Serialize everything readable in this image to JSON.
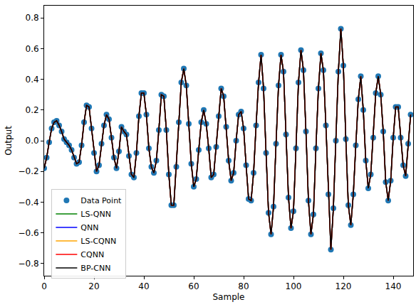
{
  "chart_data": {
    "type": "line",
    "x_label": "Sample",
    "y_label": "Output",
    "x": [
      0,
      1,
      2,
      3,
      4,
      5,
      6,
      7,
      8,
      9,
      10,
      11,
      12,
      13,
      14,
      15,
      16,
      17,
      18,
      19,
      20,
      21,
      22,
      23,
      24,
      25,
      26,
      27,
      28,
      29,
      30,
      31,
      32,
      33,
      34,
      35,
      36,
      37,
      38,
      39,
      40,
      41,
      42,
      43,
      44,
      45,
      46,
      47,
      48,
      49,
      50,
      51,
      52,
      53,
      54,
      55,
      56,
      57,
      58,
      59,
      60,
      61,
      62,
      63,
      64,
      65,
      66,
      67,
      68,
      69,
      70,
      71,
      72,
      73,
      74,
      75,
      76,
      77,
      78,
      79,
      80,
      81,
      82,
      83,
      84,
      85,
      86,
      87,
      88,
      89,
      90,
      91,
      92,
      93,
      94,
      95,
      96,
      97,
      98,
      99,
      100,
      101,
      102,
      103,
      104,
      105,
      106,
      107,
      108,
      109,
      110,
      111,
      112,
      113,
      114,
      115,
      116,
      117,
      118,
      119,
      120,
      121,
      122,
      123,
      124,
      125,
      126,
      127,
      128,
      129,
      130,
      131,
      132,
      133,
      134,
      135,
      136,
      137,
      138,
      139,
      140,
      141,
      142,
      143,
      144,
      145,
      146,
      147
    ],
    "xlim": [
      0,
      148
    ],
    "xticks": [
      0,
      20,
      40,
      60,
      80,
      100,
      120,
      140
    ],
    "ylim": [
      -0.88,
      0.88
    ],
    "yticks": [
      {
        "value": -0.8,
        "label": "−0.8"
      },
      {
        "value": -0.6,
        "label": "−0.6"
      },
      {
        "value": -0.4,
        "label": "−0.4"
      },
      {
        "value": -0.2,
        "label": "−0.2"
      },
      {
        "value": 0,
        "label": "0.0"
      },
      {
        "value": 0.2,
        "label": "0.2"
      },
      {
        "value": 0.4,
        "label": "0.4"
      },
      {
        "value": 0.6,
        "label": "0.6"
      },
      {
        "value": 0.8,
        "label": "0.8"
      }
    ],
    "grid": false,
    "legend": "lower left",
    "series": [
      {
        "name": "Data Point",
        "type": "scatter",
        "marker": "circle",
        "color": "#1f77b4",
        "values": [
          -0.18,
          -0.11,
          -0.01,
          0.08,
          0.12,
          0.13,
          0.1,
          0.06,
          0.01,
          -0.01,
          -0.03,
          -0.06,
          -0.11,
          -0.15,
          -0.14,
          -0.03,
          0.12,
          0.23,
          0.22,
          0.08,
          -0.08,
          -0.2,
          -0.16,
          -0.02,
          0.1,
          0.17,
          0.14,
          0.02,
          -0.11,
          -0.18,
          -0.07,
          0.09,
          0.06,
          0.04,
          -0.1,
          -0.22,
          -0.24,
          -0.08,
          0.16,
          0.31,
          0.31,
          0.17,
          -0.05,
          -0.17,
          -0.21,
          -0.13,
          0.07,
          0.3,
          0.29,
          0.07,
          -0.22,
          -0.42,
          -0.42,
          -0.17,
          0.12,
          0.38,
          0.47,
          0.36,
          0.11,
          -0.15,
          -0.3,
          -0.25,
          -0.06,
          0.12,
          0.2,
          0.11,
          -0.05,
          -0.24,
          -0.22,
          -0.04,
          0.16,
          0.34,
          0.29,
          0.09,
          -0.13,
          -0.26,
          -0.21,
          0.0,
          0.17,
          0.19,
          0.08,
          -0.16,
          -0.38,
          -0.39,
          -0.21,
          0.1,
          0.38,
          0.56,
          0.34,
          -0.08,
          -0.47,
          -0.61,
          -0.43,
          -0.02,
          0.36,
          0.56,
          0.45,
          0.04,
          -0.37,
          -0.57,
          -0.46,
          -0.05,
          0.38,
          0.59,
          0.46,
          0.06,
          -0.39,
          -0.61,
          -0.48,
          -0.05,
          0.34,
          0.57,
          0.46,
          0.1,
          -0.35,
          -0.71,
          -0.44,
          0.0,
          0.45,
          0.73,
          0.49,
          0.01,
          -0.42,
          -0.55,
          -0.35,
          -0.03,
          0.27,
          0.42,
          0.2,
          -0.13,
          -0.31,
          -0.22,
          0.02,
          0.31,
          0.42,
          0.3,
          0.06,
          -0.27,
          -0.39,
          -0.26,
          0.02,
          0.22,
          0.22,
          0.02,
          -0.16,
          -0.23,
          -0.02,
          0.17
        ]
      },
      {
        "name": "LS-QNN",
        "type": "line",
        "line_style": "solid",
        "color": "green",
        "values": [
          -0.18,
          -0.11,
          -0.01,
          0.08,
          0.12,
          0.13,
          0.1,
          0.06,
          0.01,
          -0.01,
          -0.03,
          -0.06,
          -0.11,
          -0.15,
          -0.14,
          -0.03,
          0.12,
          0.23,
          0.22,
          0.08,
          -0.08,
          -0.2,
          -0.16,
          -0.02,
          0.1,
          0.17,
          0.14,
          0.02,
          -0.11,
          -0.18,
          -0.07,
          0.09,
          0.06,
          0.04,
          -0.1,
          -0.22,
          -0.24,
          -0.08,
          0.16,
          0.31,
          0.31,
          0.17,
          -0.05,
          -0.17,
          -0.21,
          -0.13,
          0.07,
          0.3,
          0.29,
          0.07,
          -0.22,
          -0.42,
          -0.42,
          -0.17,
          0.12,
          0.38,
          0.47,
          0.36,
          0.11,
          -0.15,
          -0.3,
          -0.25,
          -0.06,
          0.12,
          0.2,
          0.11,
          -0.05,
          -0.24,
          -0.22,
          -0.04,
          0.16,
          0.34,
          0.29,
          0.09,
          -0.13,
          -0.26,
          -0.21,
          0.0,
          0.17,
          0.19,
          0.08,
          -0.16,
          -0.38,
          -0.39,
          -0.21,
          0.1,
          0.38,
          0.56,
          0.34,
          -0.08,
          -0.47,
          -0.61,
          -0.43,
          -0.02,
          0.36,
          0.56,
          0.45,
          0.04,
          -0.37,
          -0.57,
          -0.46,
          -0.05,
          0.38,
          0.59,
          0.46,
          0.06,
          -0.39,
          -0.61,
          -0.48,
          -0.05,
          0.34,
          0.57,
          0.46,
          0.1,
          -0.35,
          -0.71,
          -0.44,
          0.0,
          0.45,
          0.73,
          0.49,
          0.01,
          -0.42,
          -0.55,
          -0.35,
          -0.03,
          0.27,
          0.42,
          0.2,
          -0.13,
          -0.31,
          -0.22,
          0.02,
          0.31,
          0.42,
          0.3,
          0.06,
          -0.27,
          -0.39,
          -0.26,
          0.02,
          0.22,
          0.22,
          0.02,
          -0.16,
          -0.23,
          -0.02,
          0.17
        ]
      },
      {
        "name": "QNN",
        "type": "line",
        "line_style": "solid",
        "color": "blue",
        "values": [
          -0.18,
          -0.11,
          -0.01,
          0.08,
          0.12,
          0.13,
          0.1,
          0.06,
          0.01,
          -0.01,
          -0.03,
          -0.06,
          -0.11,
          -0.15,
          -0.14,
          -0.03,
          0.12,
          0.23,
          0.22,
          0.08,
          -0.08,
          -0.2,
          -0.16,
          -0.02,
          0.1,
          0.17,
          0.14,
          0.02,
          -0.11,
          -0.18,
          -0.07,
          0.09,
          0.06,
          0.04,
          -0.1,
          -0.22,
          -0.24,
          -0.08,
          0.16,
          0.31,
          0.31,
          0.17,
          -0.05,
          -0.17,
          -0.21,
          -0.13,
          0.07,
          0.3,
          0.29,
          0.07,
          -0.22,
          -0.42,
          -0.42,
          -0.17,
          0.12,
          0.38,
          0.47,
          0.36,
          0.11,
          -0.15,
          -0.3,
          -0.25,
          -0.06,
          0.12,
          0.2,
          0.11,
          -0.05,
          -0.24,
          -0.22,
          -0.04,
          0.16,
          0.34,
          0.29,
          0.09,
          -0.13,
          -0.26,
          -0.21,
          0.0,
          0.17,
          0.19,
          0.08,
          -0.16,
          -0.38,
          -0.39,
          -0.21,
          0.1,
          0.38,
          0.56,
          0.34,
          -0.08,
          -0.47,
          -0.61,
          -0.43,
          -0.02,
          0.36,
          0.56,
          0.45,
          0.04,
          -0.37,
          -0.57,
          -0.46,
          -0.05,
          0.38,
          0.59,
          0.46,
          0.06,
          -0.39,
          -0.61,
          -0.48,
          -0.05,
          0.34,
          0.57,
          0.46,
          0.1,
          -0.35,
          -0.71,
          -0.44,
          0.0,
          0.45,
          0.73,
          0.49,
          0.01,
          -0.42,
          -0.55,
          -0.35,
          -0.03,
          0.27,
          0.42,
          0.2,
          -0.13,
          -0.31,
          -0.22,
          0.02,
          0.31,
          0.42,
          0.3,
          0.06,
          -0.27,
          -0.39,
          -0.26,
          0.02,
          0.22,
          0.22,
          0.02,
          -0.16,
          -0.23,
          -0.02,
          0.17
        ]
      },
      {
        "name": "LS-CQNN",
        "type": "line",
        "line_style": "solid",
        "color": "orange",
        "values": [
          -0.18,
          -0.11,
          -0.01,
          0.08,
          0.12,
          0.13,
          0.1,
          0.06,
          0.01,
          -0.01,
          -0.03,
          -0.06,
          -0.11,
          -0.15,
          -0.14,
          -0.03,
          0.12,
          0.23,
          0.22,
          0.08,
          -0.08,
          -0.2,
          -0.16,
          -0.02,
          0.1,
          0.17,
          0.14,
          0.02,
          -0.11,
          -0.18,
          -0.07,
          0.09,
          0.06,
          0.04,
          -0.1,
          -0.22,
          -0.24,
          -0.08,
          0.16,
          0.31,
          0.31,
          0.17,
          -0.05,
          -0.17,
          -0.21,
          -0.13,
          0.07,
          0.3,
          0.29,
          0.07,
          -0.22,
          -0.42,
          -0.42,
          -0.17,
          0.12,
          0.38,
          0.47,
          0.36,
          0.11,
          -0.15,
          -0.3,
          -0.25,
          -0.06,
          0.12,
          0.2,
          0.11,
          -0.05,
          -0.24,
          -0.22,
          -0.04,
          0.16,
          0.34,
          0.29,
          0.09,
          -0.13,
          -0.26,
          -0.21,
          0.0,
          0.17,
          0.19,
          0.08,
          -0.16,
          -0.38,
          -0.39,
          -0.21,
          0.1,
          0.38,
          0.56,
          0.34,
          -0.08,
          -0.47,
          -0.61,
          -0.43,
          -0.02,
          0.36,
          0.56,
          0.45,
          0.04,
          -0.37,
          -0.57,
          -0.46,
          -0.05,
          0.38,
          0.59,
          0.46,
          0.06,
          -0.39,
          -0.61,
          -0.48,
          -0.05,
          0.34,
          0.57,
          0.46,
          0.1,
          -0.35,
          -0.71,
          -0.44,
          0.0,
          0.45,
          0.73,
          0.49,
          0.01,
          -0.42,
          -0.55,
          -0.35,
          -0.03,
          0.27,
          0.42,
          0.2,
          -0.13,
          -0.31,
          -0.22,
          0.02,
          0.31,
          0.42,
          0.3,
          0.06,
          -0.27,
          -0.39,
          -0.26,
          0.02,
          0.22,
          0.22,
          0.02,
          -0.16,
          -0.23,
          -0.02,
          0.17
        ]
      },
      {
        "name": "CQNN",
        "type": "line",
        "line_style": "solid",
        "color": "red",
        "values": [
          -0.18,
          -0.11,
          -0.01,
          0.08,
          0.12,
          0.13,
          0.1,
          0.06,
          0.01,
          -0.01,
          -0.03,
          -0.06,
          -0.11,
          -0.15,
          -0.14,
          -0.03,
          0.12,
          0.23,
          0.22,
          0.08,
          -0.08,
          -0.2,
          -0.16,
          -0.02,
          0.1,
          0.17,
          0.14,
          0.02,
          -0.11,
          -0.18,
          -0.07,
          0.09,
          0.06,
          0.04,
          -0.1,
          -0.22,
          -0.24,
          -0.08,
          0.16,
          0.31,
          0.31,
          0.17,
          -0.05,
          -0.17,
          -0.21,
          -0.13,
          0.07,
          0.3,
          0.29,
          0.07,
          -0.22,
          -0.42,
          -0.42,
          -0.17,
          0.12,
          0.38,
          0.47,
          0.36,
          0.11,
          -0.15,
          -0.3,
          -0.25,
          -0.06,
          0.12,
          0.2,
          0.11,
          -0.05,
          -0.24,
          -0.22,
          -0.04,
          0.16,
          0.34,
          0.29,
          0.09,
          -0.13,
          -0.26,
          -0.21,
          0.0,
          0.17,
          0.19,
          0.08,
          -0.16,
          -0.38,
          -0.39,
          -0.21,
          0.1,
          0.38,
          0.56,
          0.34,
          -0.08,
          -0.47,
          -0.61,
          -0.43,
          -0.02,
          0.36,
          0.56,
          0.45,
          0.04,
          -0.37,
          -0.57,
          -0.46,
          -0.05,
          0.38,
          0.59,
          0.46,
          0.06,
          -0.39,
          -0.61,
          -0.48,
          -0.05,
          0.34,
          0.57,
          0.46,
          0.1,
          -0.35,
          -0.71,
          -0.44,
          0.0,
          0.45,
          0.73,
          0.49,
          0.01,
          -0.42,
          -0.55,
          -0.35,
          -0.03,
          0.27,
          0.42,
          0.2,
          -0.13,
          -0.31,
          -0.22,
          0.02,
          0.31,
          0.42,
          0.3,
          0.06,
          -0.27,
          -0.39,
          -0.26,
          0.02,
          0.22,
          0.22,
          0.02,
          -0.16,
          -0.23,
          -0.02,
          0.17
        ]
      },
      {
        "name": "BP-CNN",
        "type": "line",
        "line_style": "solid",
        "color": "black",
        "values": [
          -0.18,
          -0.11,
          -0.01,
          0.08,
          0.12,
          0.13,
          0.1,
          0.06,
          0.01,
          -0.01,
          -0.03,
          -0.06,
          -0.11,
          -0.15,
          -0.14,
          -0.03,
          0.12,
          0.23,
          0.22,
          0.08,
          -0.08,
          -0.2,
          -0.16,
          -0.02,
          0.1,
          0.17,
          0.14,
          0.02,
          -0.11,
          -0.18,
          -0.07,
          0.09,
          0.06,
          0.04,
          -0.1,
          -0.22,
          -0.24,
          -0.08,
          0.16,
          0.31,
          0.31,
          0.17,
          -0.05,
          -0.17,
          -0.21,
          -0.13,
          0.07,
          0.3,
          0.29,
          0.07,
          -0.22,
          -0.42,
          -0.42,
          -0.17,
          0.12,
          0.38,
          0.47,
          0.36,
          0.11,
          -0.15,
          -0.3,
          -0.25,
          -0.06,
          0.12,
          0.2,
          0.11,
          -0.05,
          -0.24,
          -0.22,
          -0.04,
          0.16,
          0.34,
          0.29,
          0.09,
          -0.13,
          -0.26,
          -0.21,
          0.0,
          0.17,
          0.19,
          0.08,
          -0.16,
          -0.38,
          -0.39,
          -0.21,
          0.1,
          0.38,
          0.56,
          0.34,
          -0.08,
          -0.47,
          -0.61,
          -0.43,
          -0.02,
          0.36,
          0.56,
          0.45,
          0.04,
          -0.37,
          -0.57,
          -0.46,
          -0.05,
          0.38,
          0.59,
          0.46,
          0.06,
          -0.39,
          -0.61,
          -0.48,
          -0.05,
          0.34,
          0.57,
          0.46,
          0.1,
          -0.35,
          -0.71,
          -0.44,
          0.0,
          0.45,
          0.73,
          0.49,
          0.01,
          -0.42,
          -0.55,
          -0.35,
          -0.03,
          0.27,
          0.42,
          0.2,
          -0.13,
          -0.31,
          -0.22,
          0.02,
          0.31,
          0.42,
          0.3,
          0.06,
          -0.27,
          -0.39,
          -0.26,
          0.02,
          0.22,
          0.22,
          0.02,
          -0.16,
          -0.23,
          -0.02,
          0.17
        ]
      }
    ]
  }
}
